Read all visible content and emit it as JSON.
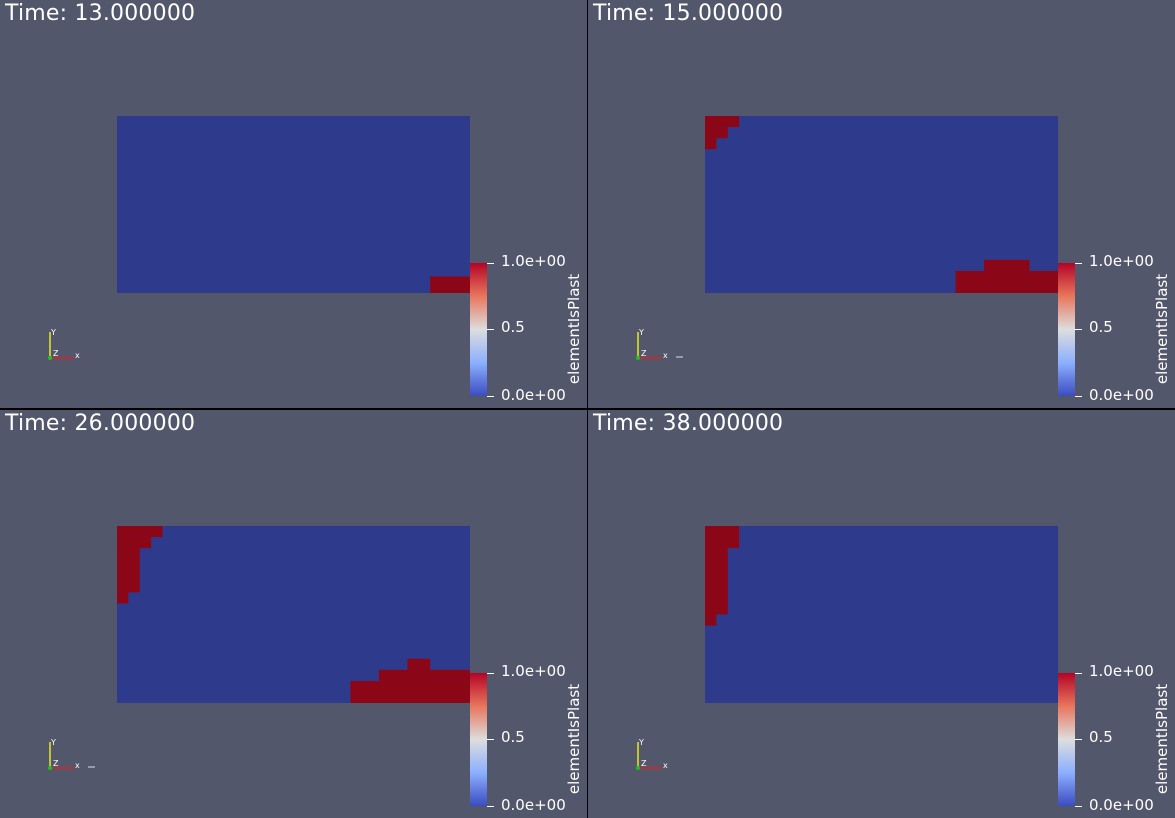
{
  "views": [
    {
      "time_label": "Time: 13.000000",
      "colorbar": {
        "title": "elementIsPlast",
        "max_label": "1.0e+00",
        "mid_label": "0.5",
        "min_label": "0.0e+00"
      },
      "axes": {
        "x": "x",
        "y": "Y",
        "z": "Z"
      },
      "plastic_regions": [
        [
          27.5,
          14.5,
          31,
          16
        ]
      ],
      "show_trailing_dash": false
    },
    {
      "time_label": "Time: 15.000000",
      "colorbar": {
        "title": "elementIsPlast",
        "max_label": "1.0e+00",
        "mid_label": "0.5",
        "min_label": "0.0e+00"
      },
      "axes": {
        "x": "x",
        "y": "Y",
        "z": "Z"
      },
      "plastic_regions": [
        [
          0,
          0,
          3,
          1
        ],
        [
          0,
          1,
          2,
          2
        ],
        [
          0,
          2,
          1,
          3
        ],
        [
          24.5,
          13,
          28.5,
          14
        ],
        [
          22,
          14,
          31,
          16
        ]
      ],
      "show_trailing_dash": true
    },
    {
      "time_label": "Time: 26.000000",
      "colorbar": {
        "title": "elementIsPlast",
        "max_label": "1.0e+00",
        "mid_label": "0.5",
        "min_label": "0.0e+00"
      },
      "axes": {
        "x": "x",
        "y": "Y",
        "z": "Z"
      },
      "plastic_regions": [
        [
          0,
          0,
          4,
          1
        ],
        [
          0,
          1,
          3,
          2
        ],
        [
          0,
          2,
          2,
          6
        ],
        [
          0,
          6,
          1,
          7
        ],
        [
          25.5,
          12,
          27.5,
          13
        ],
        [
          23,
          13,
          31,
          14
        ],
        [
          20.5,
          14,
          31,
          16
        ]
      ],
      "show_trailing_dash": true
    },
    {
      "time_label": "Time: 38.000000",
      "colorbar": {
        "title": "elementIsPlast",
        "max_label": "1.0e+00",
        "mid_label": "0.5",
        "min_label": "0.0e+00"
      },
      "axes": {
        "x": "x",
        "y": "Y",
        "z": "Z"
      },
      "plastic_regions": [
        [
          0,
          0,
          3,
          2
        ],
        [
          0,
          2,
          2,
          8
        ],
        [
          0,
          8,
          1,
          9
        ]
      ],
      "show_trailing_dash": false
    }
  ],
  "colors": {
    "background": "#52576b",
    "elastic": "#2e3b8d",
    "plastic": "#8b0717",
    "separator": "#000000"
  }
}
